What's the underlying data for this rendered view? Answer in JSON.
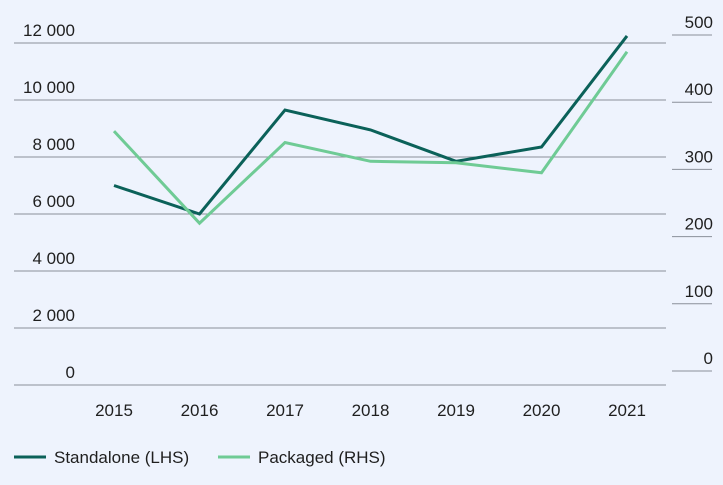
{
  "chart_data": {
    "type": "line",
    "title": "",
    "xlabel": "",
    "ylabel": "",
    "categories": [
      "2015",
      "2016",
      "2017",
      "2018",
      "2019",
      "2020",
      "2021"
    ],
    "y_left": {
      "ylim": [
        0,
        12000
      ],
      "ticks": [
        0,
        2000,
        4000,
        6000,
        8000,
        10000,
        12000
      ],
      "tick_labels": [
        "0",
        "2 000",
        "4 000",
        "6 000",
        "8 000",
        "10 000",
        "12 000"
      ]
    },
    "y_right": {
      "ylim": [
        0,
        500
      ],
      "ticks": [
        0,
        100,
        200,
        300,
        400,
        500
      ],
      "tick_labels": [
        "0",
        "100",
        "200",
        "300",
        "400",
        "500"
      ]
    },
    "series": [
      {
        "name": "Standalone (LHS)",
        "axis": "left",
        "color": "#0B6159",
        "values": [
          7000,
          6000,
          9650,
          8950,
          7850,
          8350,
          12250
        ]
      },
      {
        "name": "Packaged (RHS)",
        "axis": "right",
        "color": "#6FCB95",
        "values": [
          357,
          220,
          340,
          312,
          310,
          295,
          475
        ]
      }
    ],
    "grid": true,
    "legend_position": "bottom-left"
  }
}
